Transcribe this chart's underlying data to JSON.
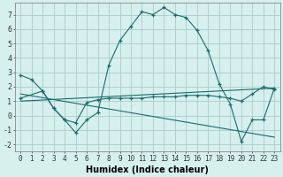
{
  "title": "",
  "xlabel": "Humidex (Indice chaleur)",
  "bg_color": "#d6f0ee",
  "grid_color": "#aacccc",
  "line_color": "#1a6b6b",
  "xlim": [
    -0.5,
    23.5
  ],
  "ylim": [
    -2.5,
    7.8
  ],
  "yticks": [
    -2,
    -1,
    0,
    1,
    2,
    3,
    4,
    5,
    6,
    7
  ],
  "xticks": [
    0,
    1,
    2,
    3,
    4,
    5,
    6,
    7,
    8,
    9,
    10,
    11,
    12,
    13,
    14,
    15,
    16,
    17,
    18,
    19,
    20,
    21,
    22,
    23
  ],
  "series_main": {
    "x": [
      0,
      1,
      2,
      3,
      4,
      5,
      6,
      7,
      8,
      9,
      10,
      11,
      12,
      13,
      14,
      15,
      16,
      17,
      18,
      19,
      20,
      21,
      22,
      23
    ],
    "y": [
      2.8,
      2.5,
      1.7,
      0.5,
      -0.3,
      -1.2,
      -0.3,
      0.2,
      3.5,
      5.2,
      6.2,
      7.2,
      7.0,
      7.5,
      7.0,
      6.8,
      5.9,
      4.5,
      2.2,
      0.8,
      -1.8,
      -0.3,
      -0.3,
      1.9
    ]
  },
  "series_trend": {
    "x": [
      0,
      2,
      3,
      4,
      5,
      6,
      7,
      8,
      9,
      10,
      11,
      12,
      13,
      14,
      15,
      16,
      17,
      18,
      19,
      20,
      21,
      22,
      23
    ],
    "y": [
      1.2,
      1.7,
      0.5,
      -0.3,
      -0.5,
      0.9,
      1.1,
      1.2,
      1.2,
      1.2,
      1.2,
      1.3,
      1.3,
      1.3,
      1.4,
      1.4,
      1.4,
      1.3,
      1.2,
      1.0,
      1.5,
      2.0,
      1.8
    ]
  },
  "line_down": {
    "x": [
      0,
      23
    ],
    "y": [
      1.5,
      -1.5
    ]
  },
  "line_up": {
    "x": [
      0,
      23
    ],
    "y": [
      1.0,
      1.9
    ]
  },
  "xlabel_fontsize": 7,
  "tick_fontsize": 5.5,
  "ytick_fontsize": 6
}
